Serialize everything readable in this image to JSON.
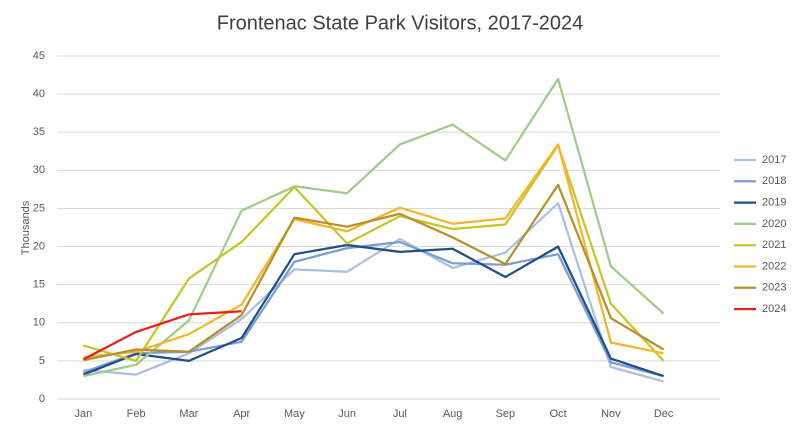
{
  "chart_data": {
    "type": "line",
    "title": "Frontenac State Park Visitors, 2017-2024",
    "y_label": "Thousands",
    "categories": [
      "Jan",
      "Feb",
      "Mar",
      "Apr",
      "May",
      "Jun",
      "Jul",
      "Aug",
      "Sep",
      "Oct",
      "Nov",
      "Dec"
    ],
    "ylim": [
      0,
      45
    ],
    "yticks": [
      0,
      5,
      10,
      15,
      20,
      25,
      30,
      35,
      40,
      45
    ],
    "grid": true,
    "legend": "right",
    "series": [
      {
        "name": "2017",
        "color": "#a9c0e4",
        "values": [
          3.8,
          3.2,
          6,
          10.5,
          17,
          16.7,
          21,
          17.2,
          19.2,
          25.7,
          4.2,
          2.3
        ]
      },
      {
        "name": "2018",
        "color": "#7c9dd0",
        "values": [
          3.5,
          6,
          6.2,
          7.5,
          18,
          19.8,
          20.6,
          17.8,
          17.6,
          19,
          4.8,
          3
        ]
      },
      {
        "name": "2019",
        "color": "#1f4e8c",
        "values": [
          3.2,
          5.9,
          5,
          8,
          19,
          20.2,
          19.3,
          19.7,
          16,
          20,
          5.3,
          3
        ]
      },
      {
        "name": "2020",
        "color": "#9fcc8a",
        "values": [
          3,
          4.5,
          10.3,
          24.7,
          27.9,
          27,
          33.4,
          36,
          31.3,
          42,
          17.4,
          11.2
        ]
      },
      {
        "name": "2021",
        "color": "#c5c52a",
        "values": [
          7,
          5,
          15.8,
          20.6,
          27.8,
          20.4,
          24,
          22.3,
          22.9,
          33.3,
          12.5,
          5
        ]
      },
      {
        "name": "2022",
        "color": "#f5b52a",
        "values": [
          5.5,
          6.2,
          8.5,
          12.4,
          23.6,
          22,
          25.1,
          23,
          23.7,
          33.4,
          7.4,
          6
        ]
      },
      {
        "name": "2023",
        "color": "#b8902a",
        "values": [
          5.1,
          6.5,
          6.2,
          11,
          23.8,
          22.6,
          24.3,
          21.2,
          17.7,
          28.1,
          10.6,
          6.5
        ]
      },
      {
        "name": "2024",
        "color": "#e8201c",
        "values": [
          5.2,
          8.8,
          11.1,
          11.5,
          null,
          null,
          null,
          null,
          null,
          null,
          null,
          null
        ]
      }
    ]
  }
}
